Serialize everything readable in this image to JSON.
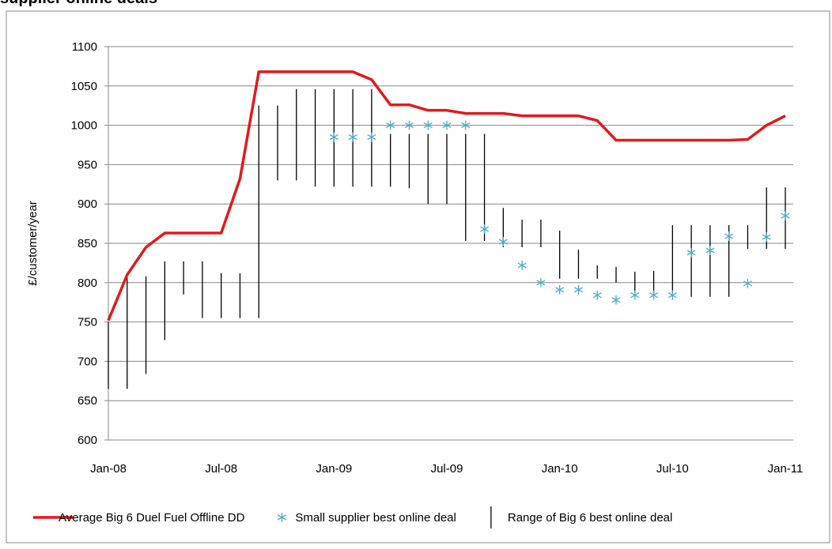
{
  "chart_data": {
    "type": "line",
    "title": "supplier online deals",
    "y_label": "£/customer/year",
    "categories": [
      "Jan-08",
      null,
      null,
      null,
      null,
      null,
      "Jul-08",
      null,
      null,
      null,
      null,
      null,
      "Jan-09",
      null,
      null,
      null,
      null,
      null,
      "Jul-09",
      null,
      null,
      null,
      null,
      null,
      "Jan-10",
      null,
      null,
      null,
      null,
      null,
      "Jul-10",
      null,
      null,
      null,
      null,
      null,
      "Jan-11"
    ],
    "series": [
      {
        "name": "Average Big 6 Duel Fuel Offline DD",
        "type": "line",
        "color": "#e3191b",
        "values": [
          752,
          810,
          845,
          863,
          863,
          863,
          863,
          932,
          1068,
          1068,
          1068,
          1068,
          1068,
          1068,
          1058,
          1026,
          1026,
          1019,
          1019,
          1015,
          1015,
          1015,
          1012,
          1012,
          1012,
          1012,
          1006,
          981,
          981,
          981,
          981,
          981,
          981,
          981,
          982,
          1000,
          1012
        ]
      },
      {
        "name": "Small supplier best online deal",
        "type": "scatter",
        "color": "#4bacc6",
        "values": [
          null,
          null,
          null,
          null,
          null,
          null,
          null,
          null,
          null,
          null,
          null,
          null,
          985,
          985,
          985,
          1000,
          1000,
          1000,
          1000,
          1000,
          868,
          852,
          822,
          800,
          791,
          791,
          784,
          778,
          784,
          784,
          784,
          838,
          841,
          859,
          799,
          858,
          885
        ]
      },
      {
        "name": "Range of Big 6 best online deal",
        "type": "range",
        "color": "#000000",
        "low": [
          665,
          665,
          684,
          727,
          785,
          755,
          755,
          755,
          755,
          930,
          930,
          922,
          922,
          922,
          922,
          922,
          920,
          900,
          900,
          853,
          853,
          845,
          845,
          845,
          805,
          805,
          805,
          800,
          788,
          784,
          782,
          782,
          782,
          782,
          843,
          843,
          843
        ],
        "high": [
          750,
          808,
          808,
          827,
          827,
          827,
          812,
          812,
          1025,
          1025,
          1046,
          1046,
          1046,
          1046,
          1046,
          989,
          989,
          989,
          989,
          989,
          989,
          895,
          880,
          880,
          866,
          842,
          822,
          820,
          814,
          815,
          873,
          873,
          873,
          873,
          873,
          921,
          921
        ]
      }
    ],
    "ylim": [
      600,
      1100
    ],
    "yticks": [
      600,
      650,
      700,
      750,
      800,
      850,
      900,
      950,
      1000,
      1050,
      1100
    ],
    "grid": true
  }
}
